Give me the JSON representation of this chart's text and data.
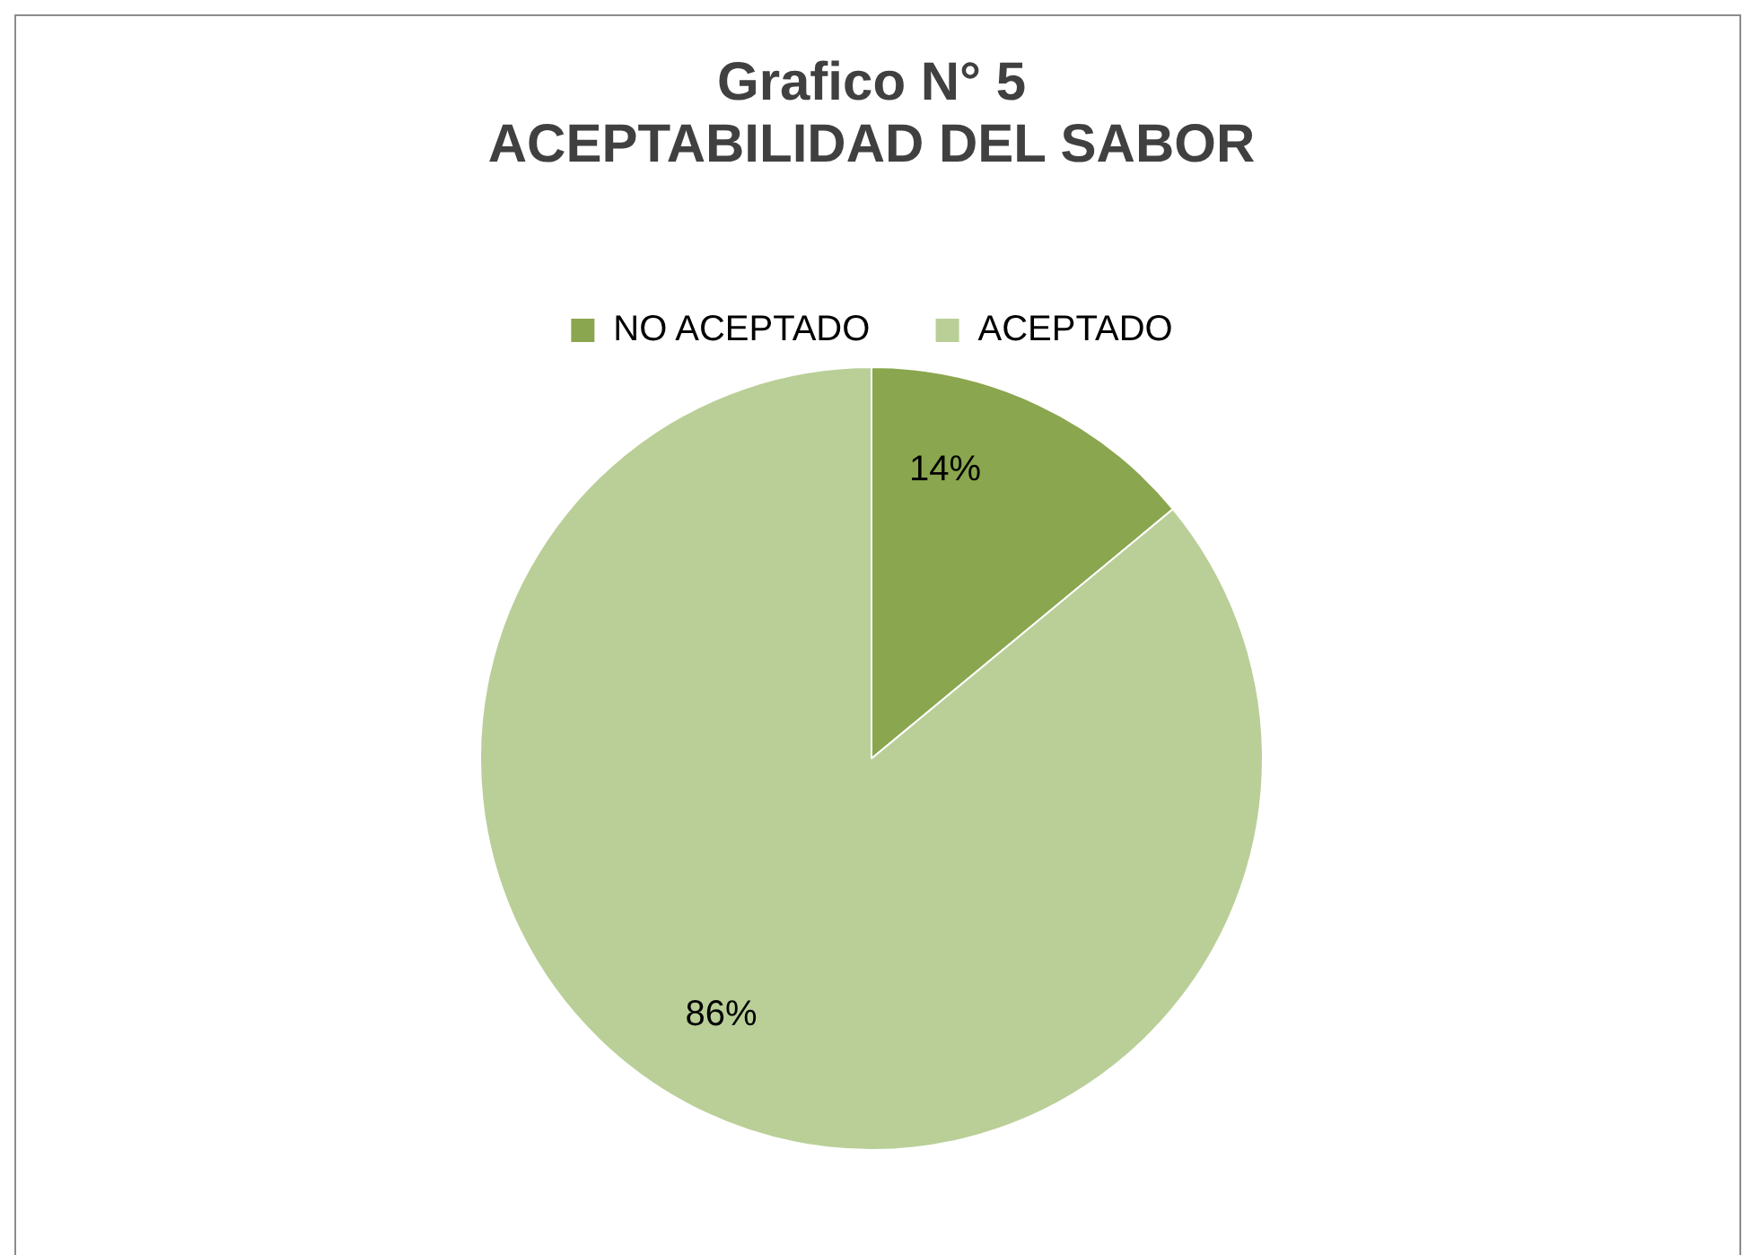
{
  "chart_data": {
    "type": "pie",
    "title": "Grafico N° 5\nACEPTABILIDAD DEL SABOR",
    "categories": [
      "NO ACEPTADO",
      "ACEPTADO"
    ],
    "values": [
      14,
      86
    ],
    "colors": [
      "#8aa64e",
      "#b9cf97"
    ],
    "value_labels": [
      "14%",
      "86%"
    ],
    "legend": "top"
  }
}
